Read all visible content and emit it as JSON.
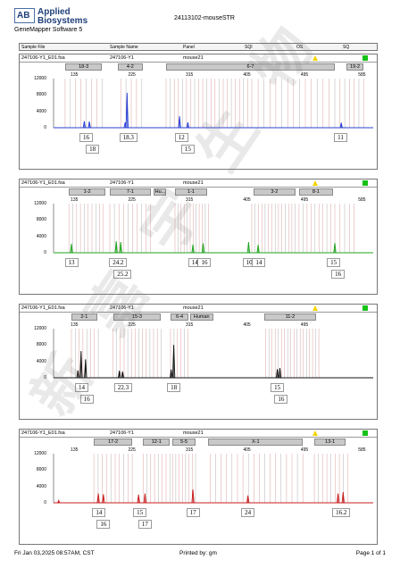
{
  "header": {
    "brand_line1": "Applied",
    "brand_line2": "Biosystems",
    "logo_letters": "AB",
    "software": "GeneMapper Software 5",
    "run_title": "24113102-mouseSTR"
  },
  "columns": [
    "Sample File",
    "Sample Name",
    "Panel",
    "SQI",
    "OS",
    "SQ"
  ],
  "colors": {
    "sq_ok": "#18c118",
    "os_warn": "#f2d300",
    "bins": "#d9a0a0",
    "bin_grey": "#b0b0b0"
  },
  "icons": {
    "os": "warning-triangle-icon",
    "sq": "green-square-icon"
  },
  "chart_data": [
    {
      "type": "electropherogram",
      "sample_file": "247106-Y1_E01.fsa",
      "sample_name": "247106-Y1",
      "panel": "mouse21",
      "dye": "blue",
      "color": "#2a3fd4",
      "xlim": [
        100,
        600
      ],
      "ylim": [
        0,
        12000
      ],
      "x_ticks": [
        135,
        225,
        315,
        405,
        495,
        585
      ],
      "y_ticks": [
        12000,
        8000,
        4000,
        0
      ],
      "markers": [
        {
          "label": "18-3",
          "from": 118,
          "to": 176
        },
        {
          "label": "4-2",
          "from": 200,
          "to": 240
        },
        {
          "label": "6-7",
          "from": 276,
          "to": 540
        },
        {
          "label": "19-2",
          "from": 558,
          "to": 585
        }
      ],
      "bins": [
        {
          "from": 118,
          "to": 176,
          "count": 8
        },
        {
          "from": 205,
          "to": 238,
          "count": 5
        },
        {
          "from": 276,
          "to": 410,
          "count": 22
        },
        {
          "from": 420,
          "to": 540,
          "count": 14
        },
        {
          "from": 548,
          "to": 585,
          "count": 6
        }
      ],
      "peaks": [
        {
          "x": 148,
          "height": 1600
        },
        {
          "x": 156,
          "height": 1500
        },
        {
          "x": 215,
          "height": 8500
        },
        {
          "x": 212,
          "height": 1300
        },
        {
          "x": 297,
          "height": 2800
        },
        {
          "x": 310,
          "height": 1300
        },
        {
          "x": 550,
          "height": 1200
        }
      ],
      "labels": [
        {
          "text": "16",
          "x": 151,
          "row": 1
        },
        {
          "text": "18",
          "x": 161,
          "row": 2
        },
        {
          "text": "18.3",
          "x": 217,
          "row": 1
        },
        {
          "text": "12",
          "x": 300,
          "row": 1
        },
        {
          "text": "15",
          "x": 310,
          "row": 2
        },
        {
          "text": "11",
          "x": 549,
          "row": 1
        }
      ]
    },
    {
      "type": "electropherogram",
      "sample_file": "247106-Y1_E01.fsa",
      "sample_name": "247106-Y1",
      "panel": "mouse21",
      "dye": "green",
      "color": "#1fa31f",
      "xlim": [
        100,
        600
      ],
      "ylim": [
        0,
        12000
      ],
      "x_ticks": [
        135,
        225,
        315,
        405,
        495,
        585
      ],
      "y_ticks": [
        12000,
        8000,
        4000,
        0
      ],
      "markers": [
        {
          "label": "1-2",
          "from": 124,
          "to": 181
        },
        {
          "label": "7-1",
          "from": 188,
          "to": 252
        },
        {
          "label": "Hu...",
          "from": 257,
          "to": 275
        },
        {
          "label": "1-1",
          "from": 290,
          "to": 340
        },
        {
          "label": "3-2",
          "from": 413,
          "to": 478
        },
        {
          "label": "8-1",
          "from": 484,
          "to": 537
        }
      ],
      "bins": [
        {
          "from": 124,
          "to": 178,
          "count": 10
        },
        {
          "from": 188,
          "to": 252,
          "count": 10
        },
        {
          "from": 290,
          "to": 342,
          "count": 12
        },
        {
          "from": 410,
          "to": 478,
          "count": 14
        },
        {
          "from": 484,
          "to": 540,
          "count": 10
        },
        {
          "from": 548,
          "to": 570,
          "count": 4
        }
      ],
      "peaks": [
        {
          "x": 128,
          "height": 2200
        },
        {
          "x": 198,
          "height": 2800
        },
        {
          "x": 205,
          "height": 2600
        },
        {
          "x": 318,
          "height": 2000
        },
        {
          "x": 334,
          "height": 2300
        },
        {
          "x": 405,
          "height": 2600
        },
        {
          "x": 420,
          "height": 1900
        },
        {
          "x": 540,
          "height": 2400
        }
      ],
      "labels": [
        {
          "text": "13",
          "x": 128,
          "row": 1
        },
        {
          "text": "24.2",
          "x": 201,
          "row": 1
        },
        {
          "text": "25.2",
          "x": 208,
          "row": 2
        },
        {
          "text": "14",
          "x": 321,
          "row": 1
        },
        {
          "text": "16",
          "x": 336,
          "row": 1
        },
        {
          "text": "10",
          "x": 406,
          "row": 1
        },
        {
          "text": "14",
          "x": 421,
          "row": 1
        },
        {
          "text": "15",
          "x": 538,
          "row": 1
        },
        {
          "text": "16",
          "x": 545,
          "row": 2
        }
      ]
    },
    {
      "type": "electropherogram",
      "sample_file": "247106-Y1_E01.fsa",
      "sample_name": "247106-Y1",
      "panel": "mouse21",
      "dye": "black",
      "color": "#111111",
      "xlim": [
        100,
        600
      ],
      "ylim": [
        0,
        12000
      ],
      "x_ticks": [
        135,
        225,
        315,
        405,
        495
      ],
      "y_ticks": [
        12000,
        8000,
        4000,
        0
      ],
      "markers": [
        {
          "label": "2-1",
          "from": 128,
          "to": 168
        },
        {
          "label": "15-3",
          "from": 193,
          "to": 268
        },
        {
          "label": "6-4",
          "from": 283,
          "to": 311
        },
        {
          "label": "Human",
          "from": 313,
          "to": 350
        },
        {
          "label": "11-2",
          "from": 430,
          "to": 510
        }
      ],
      "bins": [
        {
          "from": 128,
          "to": 170,
          "count": 8
        },
        {
          "from": 193,
          "to": 268,
          "count": 14
        },
        {
          "from": 283,
          "to": 310,
          "count": 6
        },
        {
          "from": 432,
          "to": 515,
          "count": 18
        }
      ],
      "peaks": [
        {
          "x": 143,
          "height": 6500
        },
        {
          "x": 150,
          "height": 4500
        },
        {
          "x": 138,
          "height": 1800
        },
        {
          "x": 203,
          "height": 1700
        },
        {
          "x": 208,
          "height": 1500
        },
        {
          "x": 288,
          "height": 8000
        },
        {
          "x": 284,
          "height": 2000
        },
        {
          "x": 450,
          "height": 2100
        },
        {
          "x": 454,
          "height": 2400
        }
      ],
      "labels": [
        {
          "text": "14",
          "x": 144,
          "row": 1
        },
        {
          "text": "16",
          "x": 152,
          "row": 2
        },
        {
          "text": "22.3",
          "x": 209,
          "row": 1
        },
        {
          "text": "18",
          "x": 288,
          "row": 1
        },
        {
          "text": "15",
          "x": 450,
          "row": 1
        },
        {
          "text": "16",
          "x": 456,
          "row": 2
        }
      ]
    },
    {
      "type": "electropherogram",
      "sample_file": "247106-Y1_E01.fsa",
      "sample_name": "247106-Y1",
      "panel": "mouse21",
      "dye": "red",
      "color": "#c71d1d",
      "xlim": [
        100,
        600
      ],
      "ylim": [
        0,
        12000
      ],
      "x_ticks": [
        135,
        225,
        315,
        405,
        495,
        585
      ],
      "y_ticks": [
        12000,
        8000,
        4000,
        0
      ],
      "markers": [
        {
          "label": "17-2",
          "from": 163,
          "to": 223
        },
        {
          "label": "12-1",
          "from": 240,
          "to": 282
        },
        {
          "label": "5-5",
          "from": 286,
          "to": 322
        },
        {
          "label": "X-1",
          "from": 342,
          "to": 490
        },
        {
          "label": "13-1",
          "from": 508,
          "to": 557
        }
      ],
      "bins": [
        {
          "from": 163,
          "to": 223,
          "count": 10
        },
        {
          "from": 240,
          "to": 282,
          "count": 8
        },
        {
          "from": 286,
          "to": 322,
          "count": 8
        },
        {
          "from": 345,
          "to": 490,
          "count": 18
        },
        {
          "from": 508,
          "to": 560,
          "count": 9
        }
      ],
      "peaks": [
        {
          "x": 108,
          "height": 600
        },
        {
          "x": 170,
          "height": 2300
        },
        {
          "x": 178,
          "height": 2100
        },
        {
          "x": 233,
          "height": 2000
        },
        {
          "x": 243,
          "height": 2300
        },
        {
          "x": 318,
          "height": 3200
        },
        {
          "x": 404,
          "height": 1800
        },
        {
          "x": 545,
          "height": 2300
        },
        {
          "x": 553,
          "height": 2600
        }
      ],
      "labels": [
        {
          "text": "14",
          "x": 171,
          "row": 1
        },
        {
          "text": "16",
          "x": 178,
          "row": 2
        },
        {
          "text": "15",
          "x": 235,
          "row": 1
        },
        {
          "text": "17",
          "x": 243,
          "row": 2
        },
        {
          "text": "17",
          "x": 318,
          "row": 1
        },
        {
          "text": "24",
          "x": 404,
          "row": 1
        },
        {
          "text": "16.2",
          "x": 550,
          "row": 1
        }
      ]
    }
  ],
  "footer": {
    "date": "Fri Jan 03,2025 08:57AM, CST",
    "printed_by": "Printed by: gm",
    "page": "Page 1 of 1"
  },
  "watermark": "新 嘉 宇 生 物"
}
